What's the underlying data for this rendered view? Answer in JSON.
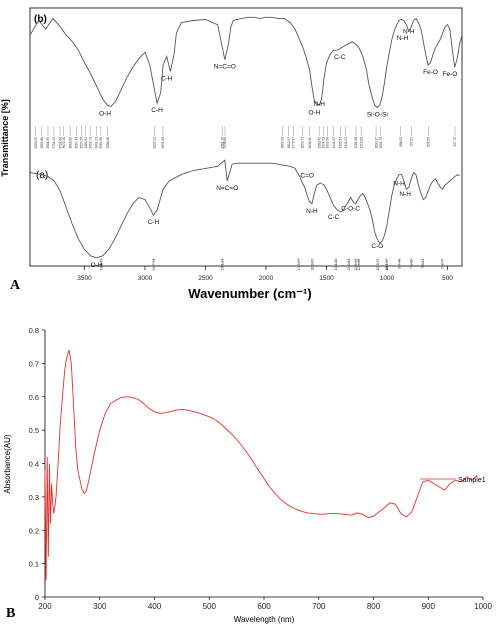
{
  "chart_data": [
    {
      "panel": "A",
      "type": "line",
      "xlabel": "Wavenumber (cm⁻¹)",
      "ylabel": "Transmittance [%]",
      "xlim": [
        3950,
        380
      ],
      "x_ticks": [
        3500,
        3000,
        2500,
        2000,
        1500,
        1000,
        500
      ],
      "grid": false,
      "series": [
        {
          "name": "(b)",
          "x": [
            3950,
            3880,
            3820,
            3760,
            3700,
            3650,
            3600,
            3550,
            3500,
            3450,
            3400,
            3350,
            3310,
            3280,
            3240,
            3200,
            3150,
            3100,
            3050,
            3000,
            2960,
            2930,
            2900,
            2870,
            2850,
            2820,
            2790,
            2760,
            2740,
            2700,
            2600,
            2500,
            2400,
            2340,
            2310,
            2290,
            2270,
            2240,
            2200,
            2150,
            2100,
            2050,
            2000,
            1950,
            1900,
            1850,
            1800,
            1760,
            1730,
            1700,
            1670,
            1640,
            1620,
            1600,
            1560,
            1540,
            1520,
            1500,
            1470,
            1440,
            1410,
            1380,
            1350,
            1320,
            1290,
            1260,
            1230,
            1200,
            1170,
            1150,
            1120,
            1100,
            1080,
            1060,
            1040,
            1020,
            1000,
            980,
            960,
            940,
            920,
            900,
            880,
            860,
            840,
            820,
            800,
            780,
            760,
            740,
            720,
            700,
            680,
            660,
            640,
            620,
            600,
            580,
            560,
            540,
            520,
            500,
            480,
            460,
            440,
            420,
            400,
            380
          ],
          "y": [
            0.78,
            0.92,
            0.84,
            0.94,
            0.86,
            0.78,
            0.72,
            0.64,
            0.52,
            0.42,
            0.3,
            0.18,
            0.12,
            0.11,
            0.16,
            0.26,
            0.38,
            0.48,
            0.56,
            0.62,
            0.5,
            0.32,
            0.14,
            0.24,
            0.5,
            0.58,
            0.44,
            0.6,
            0.8,
            0.9,
            0.92,
            0.93,
            0.88,
            0.55,
            0.7,
            0.86,
            0.92,
            0.93,
            0.94,
            0.95,
            0.95,
            0.94,
            0.95,
            0.95,
            0.94,
            0.94,
            0.9,
            0.84,
            0.76,
            0.68,
            0.58,
            0.46,
            0.3,
            0.16,
            0.12,
            0.18,
            0.38,
            0.52,
            0.6,
            0.64,
            0.64,
            0.66,
            0.68,
            0.7,
            0.72,
            0.7,
            0.66,
            0.58,
            0.46,
            0.32,
            0.18,
            0.12,
            0.1,
            0.12,
            0.2,
            0.34,
            0.5,
            0.62,
            0.74,
            0.82,
            0.88,
            0.92,
            0.93,
            0.92,
            0.88,
            0.82,
            0.86,
            0.92,
            0.94,
            0.9,
            0.84,
            0.72,
            0.6,
            0.5,
            0.52,
            0.6,
            0.66,
            0.7,
            0.74,
            0.8,
            0.86,
            0.88,
            0.84,
            0.64,
            0.48,
            0.56,
            0.7,
            0.78
          ]
        },
        {
          "name": "(a)",
          "x": [
            3950,
            3900,
            3850,
            3800,
            3750,
            3700,
            3650,
            3600,
            3550,
            3500,
            3450,
            3400,
            3350,
            3300,
            3250,
            3200,
            3150,
            3100,
            3050,
            3000,
            2960,
            2930,
            2900,
            2870,
            2850,
            2800,
            2700,
            2600,
            2500,
            2400,
            2340,
            2320,
            2300,
            2280,
            2240,
            2200,
            2100,
            2000,
            1950,
            1900,
            1850,
            1800,
            1760,
            1740,
            1720,
            1700,
            1680,
            1660,
            1640,
            1620,
            1600,
            1580,
            1550,
            1520,
            1500,
            1470,
            1440,
            1410,
            1380,
            1360,
            1340,
            1320,
            1300,
            1280,
            1260,
            1240,
            1220,
            1200,
            1180,
            1160,
            1140,
            1120,
            1100,
            1080,
            1060,
            1040,
            1020,
            1000,
            980,
            960,
            940,
            920,
            900,
            880,
            860,
            840,
            820,
            800,
            780,
            760,
            740,
            720,
            700,
            680,
            660,
            640,
            620,
            600,
            580,
            560,
            540,
            520,
            500,
            480,
            460,
            440,
            420,
            400
          ],
          "y": [
            0.86,
            0.85,
            0.84,
            0.82,
            0.78,
            0.68,
            0.52,
            0.36,
            0.22,
            0.12,
            0.06,
            0.04,
            0.06,
            0.12,
            0.22,
            0.34,
            0.46,
            0.56,
            0.62,
            0.6,
            0.52,
            0.45,
            0.5,
            0.62,
            0.7,
            0.78,
            0.84,
            0.88,
            0.9,
            0.92,
            0.98,
            0.78,
            0.86,
            0.94,
            0.95,
            0.95,
            0.95,
            0.95,
            0.95,
            0.94,
            0.93,
            0.92,
            0.9,
            0.86,
            0.82,
            0.76,
            0.72,
            0.64,
            0.58,
            0.56,
            0.66,
            0.74,
            0.76,
            0.74,
            0.7,
            0.62,
            0.54,
            0.5,
            0.48,
            0.5,
            0.54,
            0.58,
            0.62,
            0.58,
            0.56,
            0.6,
            0.64,
            0.66,
            0.62,
            0.56,
            0.5,
            0.4,
            0.28,
            0.22,
            0.18,
            0.2,
            0.26,
            0.36,
            0.5,
            0.64,
            0.74,
            0.8,
            0.84,
            0.84,
            0.78,
            0.7,
            0.72,
            0.8,
            0.86,
            0.84,
            0.74,
            0.66,
            0.6,
            0.62,
            0.68,
            0.74,
            0.78,
            0.8,
            0.76,
            0.72,
            0.7,
            0.74,
            0.76,
            0.78,
            0.8,
            0.82,
            0.84,
            0.83
          ]
        }
      ],
      "annotations_b": [
        {
          "label": "O-H",
          "x": 3330,
          "y": 0.11
        },
        {
          "label": "C-H",
          "x": 2900,
          "y": 0.14
        },
        {
          "label": "C-H",
          "x": 2820,
          "y": 0.44
        },
        {
          "label": "N=C=O",
          "x": 2340,
          "y": 0.55
        },
        {
          "label": "O-H",
          "x": 1600,
          "y": 0.12
        },
        {
          "label": "N-H",
          "x": 1560,
          "y": 0.2
        },
        {
          "label": "C-C",
          "x": 1390,
          "y": 0.64
        },
        {
          "label": "Si-O-Si",
          "x": 1080,
          "y": 0.1
        },
        {
          "label": "N-H",
          "x": 870,
          "y": 0.82
        },
        {
          "label": "N-H",
          "x": 820,
          "y": 0.88
        },
        {
          "label": "Fe-O",
          "x": 640,
          "y": 0.5
        },
        {
          "label": "Fe-O",
          "x": 480,
          "y": 0.48
        }
      ],
      "annotations_a": [
        {
          "label": "O-H",
          "x": 3400,
          "y": 0.04
        },
        {
          "label": "C-H",
          "x": 2930,
          "y": 0.45
        },
        {
          "label": "N=C=O",
          "x": 2320,
          "y": 0.78
        },
        {
          "label": "C=O",
          "x": 1660,
          "y": 0.9
        },
        {
          "label": "N-H",
          "x": 1620,
          "y": 0.56
        },
        {
          "label": "C-C",
          "x": 1440,
          "y": 0.5
        },
        {
          "label": "C-O-C",
          "x": 1300,
          "y": 0.58
        },
        {
          "label": "C-O",
          "x": 1080,
          "y": 0.22
        },
        {
          "label": "N-H",
          "x": 900,
          "y": 0.82
        },
        {
          "label": "N-H",
          "x": 850,
          "y": 0.72
        }
      ],
      "peak_list_b": [
        "3903.05",
        "3851.86",
        "3801.35",
        "3751.92",
        "3701.66",
        "3672.40",
        "3618.62",
        "3567.13",
        "3524.28",
        "3489.61",
        "3452.79",
        "3401.22",
        "3364.58",
        "3308.98",
        "2923.12",
        "2851.30",
        "2361.74",
        "2338.68",
        "1863.93",
        "1812.07",
        "1773.17",
        "1699.71",
        "1638.19",
        "1560.42",
        "1524.31",
        "1493.58",
        "1441.25",
        "1385.27",
        "1341.51",
        "1256.38",
        "1213.60",
        "1090.17",
        "1051.73",
        "886.02",
        "797.02",
        "658.55",
        "437.75"
      ],
      "peak_list_a": [
        "3362.79",
        "2927.73",
        "2361.01",
        "1729.97",
        "1619.07",
        "1421.10",
        "1313.81",
        "1259.24",
        "1234.08",
        "1073.77",
        "1001.67",
        "897.48",
        "799.05",
        "703.01",
        "543.77"
      ]
    },
    {
      "panel": "B",
      "type": "line",
      "xlabel": "Wavelength (nm)",
      "ylabel": "Absorbance(AU)",
      "xlim": [
        200,
        1000
      ],
      "ylim": [
        0,
        0.8
      ],
      "x_ticks": [
        200,
        300,
        400,
        500,
        600,
        700,
        800,
        900,
        1000
      ],
      "y_ticks": [
        "0",
        "0.1",
        "0.2",
        "0.3",
        "0.4",
        "0.5",
        "0.6",
        "0.7",
        "0.8"
      ],
      "grid": false,
      "series": [
        {
          "name": "Sample1",
          "x": [
            200,
            202,
            204,
            206,
            208,
            210,
            212,
            214,
            216,
            218,
            220,
            224,
            228,
            232,
            236,
            240,
            244,
            248,
            252,
            256,
            260,
            264,
            268,
            272,
            276,
            280,
            290,
            300,
            310,
            320,
            330,
            340,
            350,
            360,
            370,
            380,
            390,
            400,
            410,
            420,
            430,
            440,
            450,
            460,
            470,
            480,
            490,
            500,
            510,
            520,
            530,
            540,
            550,
            560,
            570,
            580,
            590,
            600,
            610,
            620,
            630,
            640,
            650,
            660,
            670,
            680,
            690,
            700,
            710,
            720,
            730,
            740,
            750,
            760,
            770,
            780,
            790,
            800,
            810,
            820,
            830,
            840,
            850,
            860,
            870,
            880,
            890,
            900,
            910,
            920,
            930,
            940,
            950,
            960,
            970,
            980,
            990
          ],
          "y": [
            0.38,
            0.05,
            0.42,
            0.12,
            0.4,
            0.22,
            0.34,
            0.28,
            0.25,
            0.27,
            0.3,
            0.4,
            0.52,
            0.6,
            0.68,
            0.72,
            0.74,
            0.7,
            0.58,
            0.45,
            0.38,
            0.35,
            0.32,
            0.31,
            0.32,
            0.35,
            0.43,
            0.5,
            0.55,
            0.58,
            0.59,
            0.598,
            0.6,
            0.598,
            0.592,
            0.58,
            0.565,
            0.555,
            0.55,
            0.552,
            0.556,
            0.56,
            0.562,
            0.56,
            0.556,
            0.552,
            0.546,
            0.54,
            0.532,
            0.52,
            0.505,
            0.49,
            0.472,
            0.452,
            0.43,
            0.405,
            0.38,
            0.355,
            0.33,
            0.31,
            0.293,
            0.28,
            0.27,
            0.262,
            0.256,
            0.252,
            0.25,
            0.248,
            0.248,
            0.25,
            0.25,
            0.249,
            0.247,
            0.245,
            0.252,
            0.248,
            0.238,
            0.242,
            0.255,
            0.268,
            0.282,
            0.278,
            0.25,
            0.24,
            0.255,
            0.3,
            0.345,
            0.35,
            0.34,
            0.33,
            0.32,
            0.34,
            0.35,
            0.345,
            0.36,
            0.35,
            0.365
          ]
        }
      ],
      "series_label": "Sample1"
    }
  ],
  "labels": {
    "panel_a": "A",
    "panel_b": "B",
    "series_b": "(b)",
    "series_a": "(a)",
    "ir_ylabel": "Transmittance [%]",
    "ir_xlabel": "Wavenumber (cm⁻¹)",
    "uv_ylabel": "Absorbance(AU)",
    "uv_xlabel": "Wavelength (nm)",
    "uv_legend": "Sample1"
  },
  "colors": {
    "ir_line": "#555555",
    "uv_line": "#e8302a",
    "axis": "#000000"
  }
}
